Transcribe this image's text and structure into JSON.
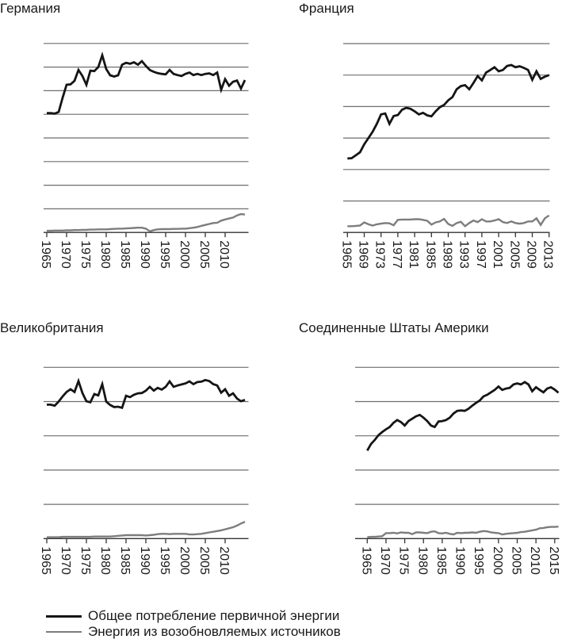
{
  "figure": {
    "background": "#ffffff"
  },
  "colors": {
    "total_line": "#151515",
    "renewables_line": "#7d7d7d",
    "gridline": "#6e6e6e",
    "axis": "#333333",
    "text": "#1a1a1a"
  },
  "legend": {
    "items": [
      {
        "series": "total",
        "label": "Общее потребление первичной энергии"
      },
      {
        "series": "renewables",
        "label": "Энергия из возобновляемых источников"
      }
    ]
  },
  "chart_data": [
    {
      "key": "germany",
      "type": "line",
      "title": "Германия",
      "xlabel": "",
      "ylabel": "",
      "y_unit": "gridline intervals (y-axis unlabeled in figure)",
      "gridlines": 8,
      "ylim": [
        0,
        8
      ],
      "grid": "horizontal only",
      "legend_position": "bottom of figure (shared)",
      "years_range": [
        1965,
        2015
      ],
      "x_tick_labels": [
        "1965",
        "1970",
        "1975",
        "1980",
        "1985",
        "1990",
        "1995",
        "2000",
        "2005",
        "2010"
      ],
      "series": [
        {
          "name": "Общее потребление первичной энергии",
          "values": [
            5.05,
            5.05,
            5.03,
            5.1,
            5.7,
            6.25,
            6.27,
            6.42,
            6.88,
            6.62,
            6.25,
            6.85,
            6.83,
            7.0,
            7.5,
            6.92,
            6.65,
            6.6,
            6.65,
            7.1,
            7.18,
            7.14,
            7.2,
            7.1,
            7.25,
            7.05,
            6.88,
            6.8,
            6.74,
            6.71,
            6.69,
            6.88,
            6.71,
            6.66,
            6.62,
            6.71,
            6.77,
            6.66,
            6.71,
            6.66,
            6.71,
            6.73,
            6.66,
            6.77,
            6.04,
            6.49,
            6.21,
            6.38,
            6.43,
            6.09,
            6.45
          ]
        },
        {
          "name": "Энергия из возобновляемых источников",
          "values": [
            0.07,
            0.07,
            0.08,
            0.08,
            0.08,
            0.09,
            0.09,
            0.1,
            0.1,
            0.11,
            0.11,
            0.12,
            0.12,
            0.13,
            0.13,
            0.13,
            0.14,
            0.15,
            0.16,
            0.16,
            0.17,
            0.18,
            0.19,
            0.2,
            0.2,
            0.16,
            0.05,
            0.1,
            0.13,
            0.14,
            0.14,
            0.14,
            0.15,
            0.15,
            0.16,
            0.16,
            0.18,
            0.2,
            0.23,
            0.28,
            0.32,
            0.36,
            0.4,
            0.41,
            0.5,
            0.55,
            0.59,
            0.63,
            0.72,
            0.78,
            0.76
          ]
        }
      ]
    },
    {
      "key": "france",
      "type": "line",
      "title": "Франция",
      "xlabel": "",
      "ylabel": "",
      "y_unit": "gridline intervals (y-axis unlabeled in figure)",
      "gridlines": 6,
      "ylim": [
        0,
        6
      ],
      "grid": "horizontal only",
      "legend_position": "bottom of figure (shared)",
      "years_range": [
        1965,
        2013
      ],
      "x_tick_labels": [
        "1965",
        "1969",
        "1973",
        "1977",
        "1981",
        "1985",
        "1989",
        "1993",
        "1997",
        "2001",
        "2005",
        "2009",
        "2013"
      ],
      "series": [
        {
          "name": "Общее потребление первичной энергии",
          "values": [
            2.35,
            2.36,
            2.45,
            2.55,
            2.8,
            3.0,
            3.2,
            3.45,
            3.75,
            3.78,
            3.45,
            3.7,
            3.73,
            3.9,
            3.96,
            3.93,
            3.85,
            3.75,
            3.8,
            3.72,
            3.69,
            3.85,
            3.98,
            4.05,
            4.2,
            4.3,
            4.55,
            4.65,
            4.68,
            4.55,
            4.75,
            4.97,
            4.83,
            5.08,
            5.16,
            5.25,
            5.12,
            5.16,
            5.29,
            5.32,
            5.25,
            5.28,
            5.23,
            5.16,
            4.85,
            5.12,
            4.88,
            4.95,
            5.0
          ]
        },
        {
          "name": "Энергия из возобновляемых источников",
          "values": [
            0.2,
            0.2,
            0.21,
            0.22,
            0.32,
            0.26,
            0.22,
            0.26,
            0.28,
            0.3,
            0.29,
            0.23,
            0.4,
            0.41,
            0.41,
            0.41,
            0.42,
            0.42,
            0.4,
            0.37,
            0.25,
            0.32,
            0.35,
            0.43,
            0.27,
            0.21,
            0.3,
            0.34,
            0.2,
            0.3,
            0.38,
            0.33,
            0.42,
            0.35,
            0.35,
            0.38,
            0.42,
            0.33,
            0.3,
            0.35,
            0.3,
            0.28,
            0.3,
            0.35,
            0.35,
            0.45,
            0.24,
            0.45,
            0.54
          ]
        }
      ]
    },
    {
      "key": "uk",
      "type": "line",
      "title": "Великобритания",
      "xlabel": "",
      "ylabel": "",
      "y_unit": "gridline intervals (y-axis unlabeled in figure)",
      "gridlines": 5,
      "ylim": [
        0,
        5
      ],
      "grid": "horizontal only",
      "legend_position": "bottom of figure (shared)",
      "years_range": [
        1965,
        2015
      ],
      "x_tick_labels": [
        "1965",
        "1970",
        "1975",
        "1980",
        "1985",
        "1990",
        "1995",
        "2000",
        "2005",
        "2010"
      ],
      "series": [
        {
          "name": "Общее потребление первичной энергии",
          "values": [
            3.91,
            3.91,
            3.88,
            4.0,
            4.15,
            4.28,
            4.36,
            4.28,
            4.6,
            4.25,
            4.01,
            3.98,
            4.22,
            4.18,
            4.51,
            4.0,
            3.9,
            3.84,
            3.85,
            3.82,
            4.17,
            4.13,
            4.2,
            4.24,
            4.25,
            4.32,
            4.43,
            4.32,
            4.4,
            4.35,
            4.43,
            4.59,
            4.43,
            4.47,
            4.5,
            4.53,
            4.59,
            4.51,
            4.57,
            4.58,
            4.63,
            4.6,
            4.51,
            4.47,
            4.26,
            4.36,
            4.17,
            4.24,
            4.09,
            4.01,
            4.05
          ]
        },
        {
          "name": "Энергия из возобновляемых источников",
          "values": [
            0.04,
            0.04,
            0.04,
            0.04,
            0.05,
            0.05,
            0.05,
            0.05,
            0.05,
            0.05,
            0.05,
            0.05,
            0.06,
            0.06,
            0.06,
            0.06,
            0.06,
            0.07,
            0.08,
            0.09,
            0.1,
            0.1,
            0.1,
            0.1,
            0.1,
            0.09,
            0.1,
            0.11,
            0.13,
            0.14,
            0.14,
            0.13,
            0.14,
            0.14,
            0.14,
            0.14,
            0.12,
            0.12,
            0.13,
            0.14,
            0.16,
            0.18,
            0.2,
            0.22,
            0.24,
            0.27,
            0.3,
            0.33,
            0.38,
            0.44,
            0.49
          ]
        }
      ]
    },
    {
      "key": "usa",
      "type": "line",
      "title": "Соединенные Штаты Америки",
      "xlabel": "",
      "ylabel": "",
      "y_unit": "gridline intervals (y-axis unlabeled in figure)",
      "gridlines": 5,
      "ylim": [
        0,
        5
      ],
      "grid": "horizontal only",
      "legend_position": "bottom of figure (shared)",
      "years_range": [
        1965,
        2016
      ],
      "x_tick_labels": [
        "1965",
        "1970",
        "1975",
        "1980",
        "1985",
        "1990",
        "1995",
        "2000",
        "2005",
        "2010",
        "2015"
      ],
      "series": [
        {
          "name": "Общее потребление первичной энергии",
          "values": [
            2.57,
            2.76,
            2.88,
            3.02,
            3.11,
            3.19,
            3.26,
            3.38,
            3.46,
            3.4,
            3.3,
            3.43,
            3.5,
            3.57,
            3.61,
            3.53,
            3.43,
            3.3,
            3.26,
            3.42,
            3.43,
            3.46,
            3.53,
            3.65,
            3.73,
            3.74,
            3.73,
            3.79,
            3.88,
            3.96,
            4.03,
            4.15,
            4.2,
            4.27,
            4.34,
            4.44,
            4.34,
            4.38,
            4.4,
            4.5,
            4.53,
            4.5,
            4.57,
            4.5,
            4.3,
            4.42,
            4.34,
            4.27,
            4.38,
            4.42,
            4.35,
            4.26
          ]
        },
        {
          "name": "Энергия из возобновляемых источников",
          "values": [
            0.04,
            0.05,
            0.05,
            0.06,
            0.07,
            0.16,
            0.16,
            0.17,
            0.15,
            0.18,
            0.17,
            0.17,
            0.13,
            0.18,
            0.18,
            0.17,
            0.16,
            0.2,
            0.21,
            0.16,
            0.15,
            0.17,
            0.14,
            0.12,
            0.17,
            0.16,
            0.17,
            0.17,
            0.18,
            0.17,
            0.2,
            0.22,
            0.21,
            0.18,
            0.17,
            0.16,
            0.12,
            0.14,
            0.15,
            0.16,
            0.17,
            0.19,
            0.2,
            0.22,
            0.24,
            0.26,
            0.3,
            0.31,
            0.33,
            0.34,
            0.34,
            0.35
          ]
        }
      ]
    }
  ]
}
